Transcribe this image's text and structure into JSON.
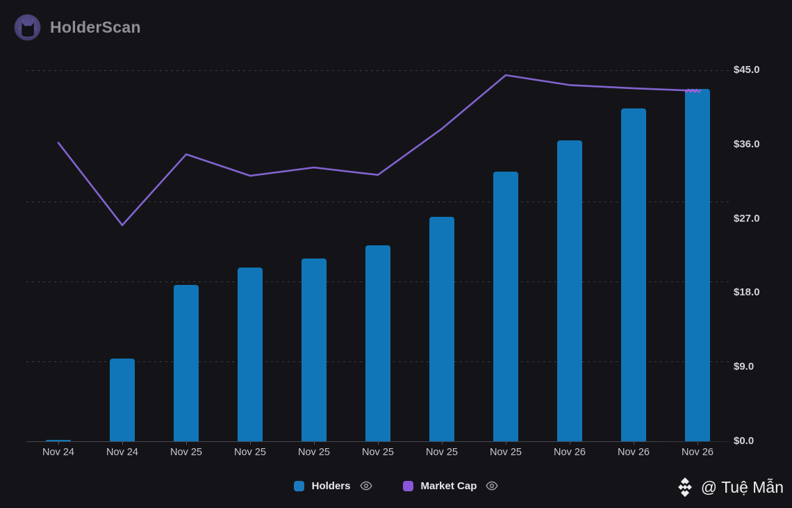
{
  "header": {
    "brand": "HolderScan"
  },
  "watermark": {
    "handle": "@ Tuệ Mẫn"
  },
  "legend": {
    "items": [
      {
        "label": "Holders",
        "color": "#1b7abd",
        "icon": "eye-icon"
      },
      {
        "label": "Market Cap",
        "color": "#8b57d9",
        "icon": "eye-icon"
      }
    ]
  },
  "chart_data": {
    "type": "combo",
    "title": "",
    "categories": [
      "Nov 24",
      "Nov 24",
      "Nov 25",
      "Nov 25",
      "Nov 25",
      "Nov 25",
      "Nov 25",
      "Nov 25",
      "Nov 26",
      "Nov 26",
      "Nov 26"
    ],
    "series": [
      {
        "name": "Holders",
        "type": "bar",
        "color": "#1176b8",
        "axis": "hidden-left",
        "values": [
          0.2,
          10.0,
          19.0,
          21.1,
          22.2,
          23.8,
          27.2,
          32.7,
          36.5,
          40.4,
          42.7
        ],
        "note": "bar heights read against the right $ scale as plotted"
      },
      {
        "name": "Market Cap",
        "type": "line",
        "color": "#8263cf",
        "axis": "right",
        "values": [
          36.2,
          26.2,
          34.8,
          32.2,
          33.2,
          32.3,
          37.9,
          44.4,
          43.2,
          42.8,
          42.5
        ]
      }
    ],
    "y_axis_right": {
      "tick_labels": [
        "$45.0",
        "$36.0",
        "$27.0",
        "$18.0",
        "$9.0",
        "$0.0"
      ],
      "min": 0,
      "max": 45,
      "step": 9,
      "prefix": "$",
      "side": "right"
    },
    "grid": "dashed-horizontal",
    "legend_position": "bottom",
    "annotations": [
      {
        "type": "squiggle",
        "color": "#b55ad8",
        "at_category_index": 10,
        "on": "Market Cap end point"
      }
    ]
  }
}
